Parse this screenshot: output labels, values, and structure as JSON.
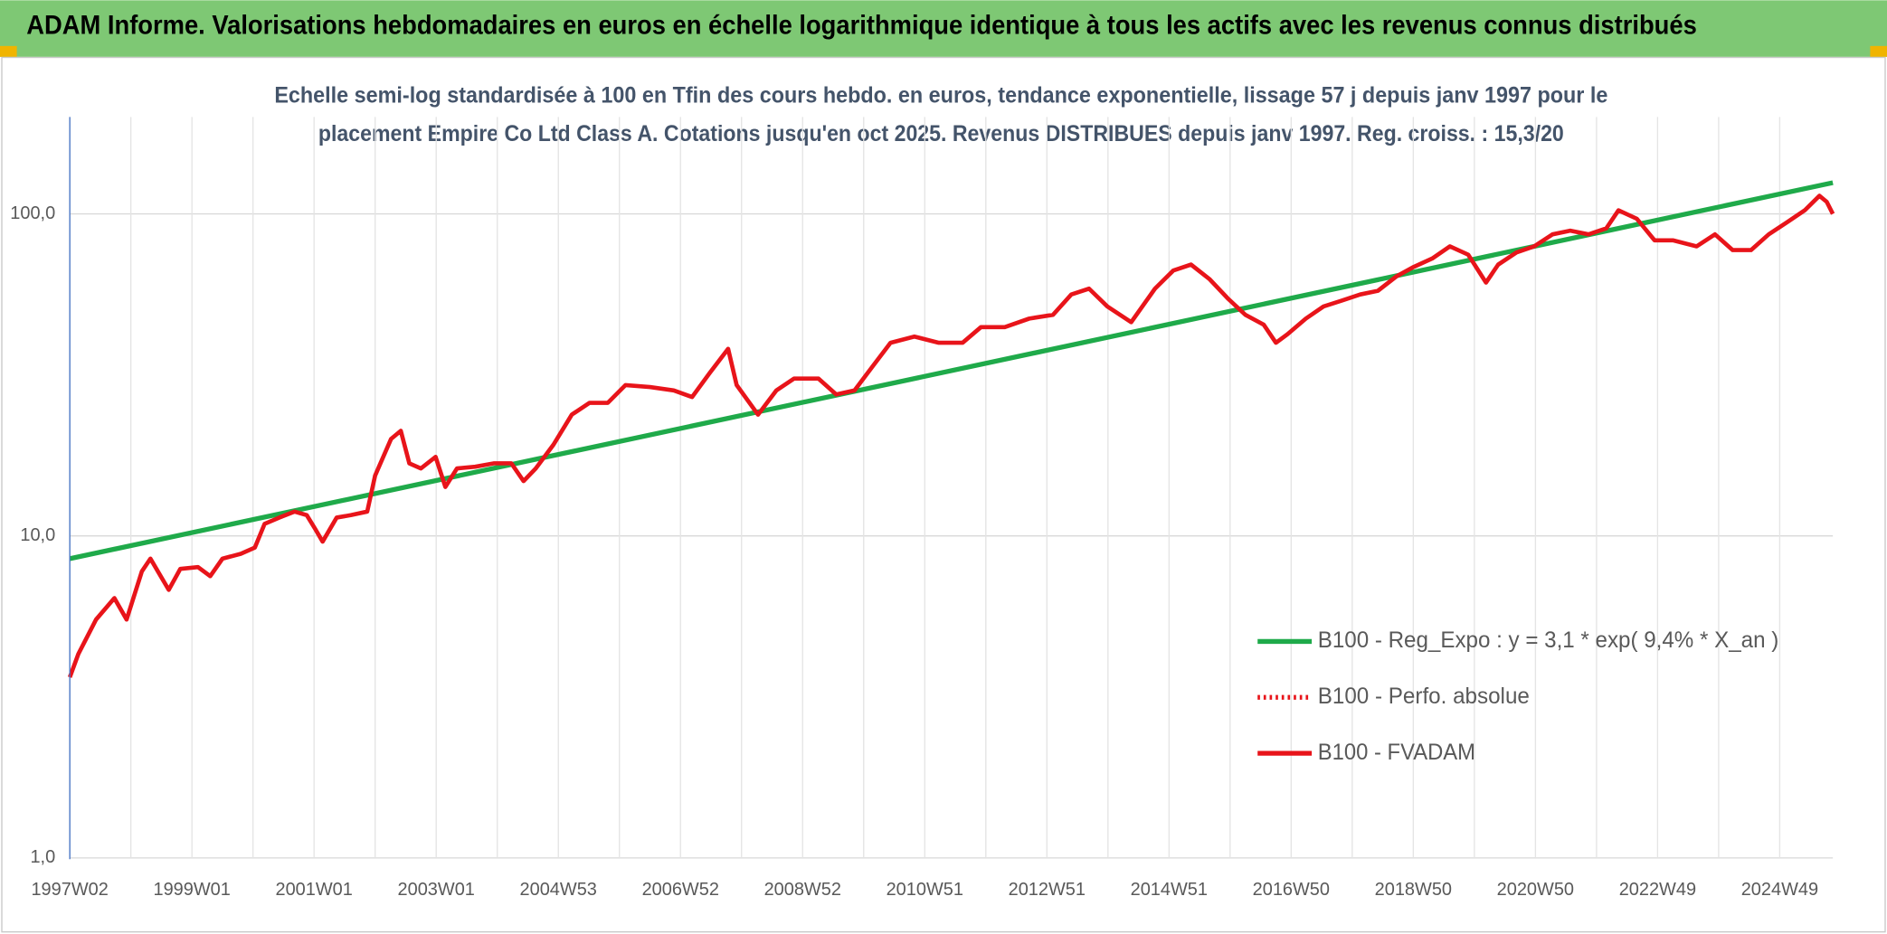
{
  "chart_data": {
    "type": "line",
    "title": "ADAM Informe. Valorisations hebdomadaires en euros en échelle logarithmique identique à tous les actifs avec les revenus connus distribués",
    "subtitle": [
      "Echelle semi-log standardisée à 100 en Tfin des cours hebdo. en euros, tendance exponentielle, lissage 57 j depuis janv 1997 pour le",
      "placement Empire Co Ltd Class A. Cotations jusqu'en oct 2025. Revenus DISTRIBUES depuis janv 1997. Reg. croiss. : 15,3/20"
    ],
    "log_y": true,
    "grid": true,
    "legend_position": "right",
    "ylim": [
      1,
      200
    ],
    "yticks": [
      {
        "value": 1,
        "label": "1,0"
      },
      {
        "value": 10,
        "label": "10,0"
      },
      {
        "value": 100,
        "label": "100,0"
      }
    ],
    "xlim": [
      1997,
      2025.87
    ],
    "xticks": [
      {
        "value": 1997,
        "label": "1997W02"
      },
      {
        "value": 1999,
        "label": "1999W01"
      },
      {
        "value": 2001,
        "label": "2001W01"
      },
      {
        "value": 2003,
        "label": "2003W01"
      },
      {
        "value": 2005,
        "label": "2004W53"
      },
      {
        "value": 2007,
        "label": "2006W52"
      },
      {
        "value": 2009,
        "label": "2008W52"
      },
      {
        "value": 2011,
        "label": "2010W51"
      },
      {
        "value": 2013,
        "label": "2012W51"
      },
      {
        "value": 2015,
        "label": "2014W51"
      },
      {
        "value": 2017,
        "label": "2016W50"
      },
      {
        "value": 2019,
        "label": "2018W50"
      },
      {
        "value": 2021,
        "label": "2020W50"
      },
      {
        "value": 2023,
        "label": "2022W49"
      },
      {
        "value": 2025,
        "label": "2024W49"
      }
    ],
    "xminor": [
      1998,
      2000,
      2002,
      2004,
      2006,
      2008,
      2010,
      2012,
      2014,
      2016,
      2018,
      2020,
      2022,
      2024
    ],
    "series": [
      {
        "name": "B100 - Reg_Expo : y = 3,1 * exp( 9,4% *  X_an )",
        "color": "#1faa4a",
        "style": "solid",
        "x": [
          1997,
          2025.87
        ],
        "values": [
          8.5,
          125
        ]
      },
      {
        "name": "B100 - Perfo. absolue",
        "color": "#e8141a",
        "style": "dotted",
        "x": [],
        "values": []
      },
      {
        "name": "B100 - FVADAM",
        "color": "#e8141a",
        "style": "solid",
        "x": [
          1997.0,
          1997.14,
          1997.43,
          1997.73,
          1997.93,
          1998.18,
          1998.32,
          1998.62,
          1998.81,
          1999.1,
          1999.3,
          1999.5,
          1999.8,
          2000.03,
          2000.19,
          2000.43,
          2000.68,
          2000.88,
          2001.02,
          2001.14,
          2001.37,
          2001.6,
          2001.87,
          2002.0,
          2002.26,
          2002.42,
          2002.56,
          2002.75,
          2002.99,
          2003.15,
          2003.34,
          2003.64,
          2003.94,
          2004.23,
          2004.43,
          2004.63,
          2004.92,
          2005.22,
          2005.51,
          2005.81,
          2006.1,
          2006.5,
          2006.89,
          2007.19,
          2007.48,
          2007.78,
          2007.92,
          2008.27,
          2008.57,
          2008.86,
          2009.26,
          2009.55,
          2009.85,
          2010.14,
          2010.44,
          2010.83,
          2011.23,
          2011.62,
          2011.92,
          2012.31,
          2012.71,
          2013.1,
          2013.4,
          2013.69,
          2013.99,
          2014.38,
          2014.77,
          2015.07,
          2015.36,
          2015.66,
          2015.96,
          2016.25,
          2016.55,
          2016.75,
          2016.94,
          2017.24,
          2017.53,
          2017.83,
          2018.13,
          2018.42,
          2018.72,
          2019.01,
          2019.31,
          2019.6,
          2019.9,
          2020.19,
          2020.39,
          2020.69,
          2020.98,
          2021.28,
          2021.57,
          2021.87,
          2022.16,
          2022.36,
          2022.66,
          2022.95,
          2023.25,
          2023.64,
          2023.94,
          2024.23,
          2024.53,
          2024.82,
          2025.12,
          2025.41,
          2025.65,
          2025.77,
          2025.87
        ],
        "values": [
          3.64,
          4.3,
          5.5,
          6.41,
          5.5,
          7.76,
          8.5,
          6.8,
          7.9,
          8.0,
          7.5,
          8.5,
          8.8,
          9.2,
          10.9,
          11.4,
          11.9,
          11.6,
          10.5,
          9.6,
          11.4,
          11.6,
          11.9,
          15.4,
          20.0,
          21.2,
          16.8,
          16.2,
          17.6,
          14.2,
          16.2,
          16.4,
          16.8,
          16.8,
          14.8,
          16.2,
          19.2,
          23.8,
          25.9,
          25.9,
          29.4,
          29.0,
          28.3,
          27.0,
          32.1,
          38.1,
          29.4,
          23.8,
          28.3,
          30.8,
          30.8,
          27.5,
          28.3,
          33.5,
          39.8,
          41.6,
          39.8,
          39.8,
          44.5,
          44.5,
          47.3,
          48.6,
          56.2,
          58.6,
          51.6,
          46.1,
          58.6,
          66.7,
          69.6,
          62.8,
          54.7,
          48.6,
          45.3,
          39.8,
          42.3,
          47.3,
          51.6,
          53.8,
          56.2,
          57.7,
          63.9,
          68.5,
          72.7,
          79.3,
          74.7,
          61.2,
          69.6,
          75.9,
          79.3,
          86.4,
          88.7,
          86.4,
          90.2,
          102.6,
          96.6,
          82.8,
          82.8,
          79.3,
          86.4,
          77.2,
          77.2,
          86.4,
          94.2,
          102.6,
          113.8,
          109,
          100
        ]
      }
    ]
  }
}
